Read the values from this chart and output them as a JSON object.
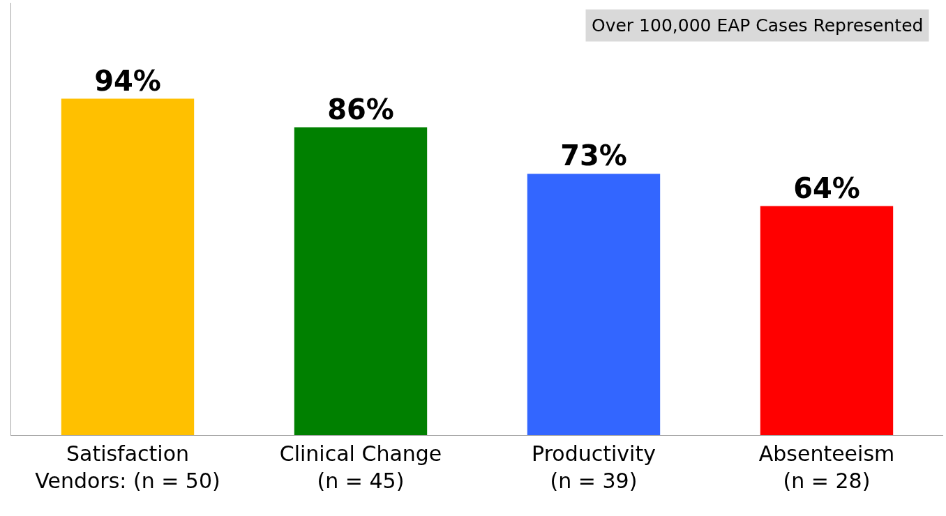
{
  "chart_data": {
    "type": "bar",
    "categories": [
      "Satisfaction\nVendors: (n = 50)",
      "Clinical Change\n(n = 45)",
      "Productivity\n(n = 39)",
      "Absenteeism\n(n = 28)"
    ],
    "values": [
      94,
      86,
      73,
      64
    ],
    "colors": [
      "#ffc000",
      "#008000",
      "#3366ff",
      "#ff0000"
    ],
    "value_labels": [
      "94%",
      "86%",
      "73%",
      "64%"
    ],
    "annotations": [
      "Over 100,000 EAP Cases Represented"
    ],
    "legend": false
  }
}
